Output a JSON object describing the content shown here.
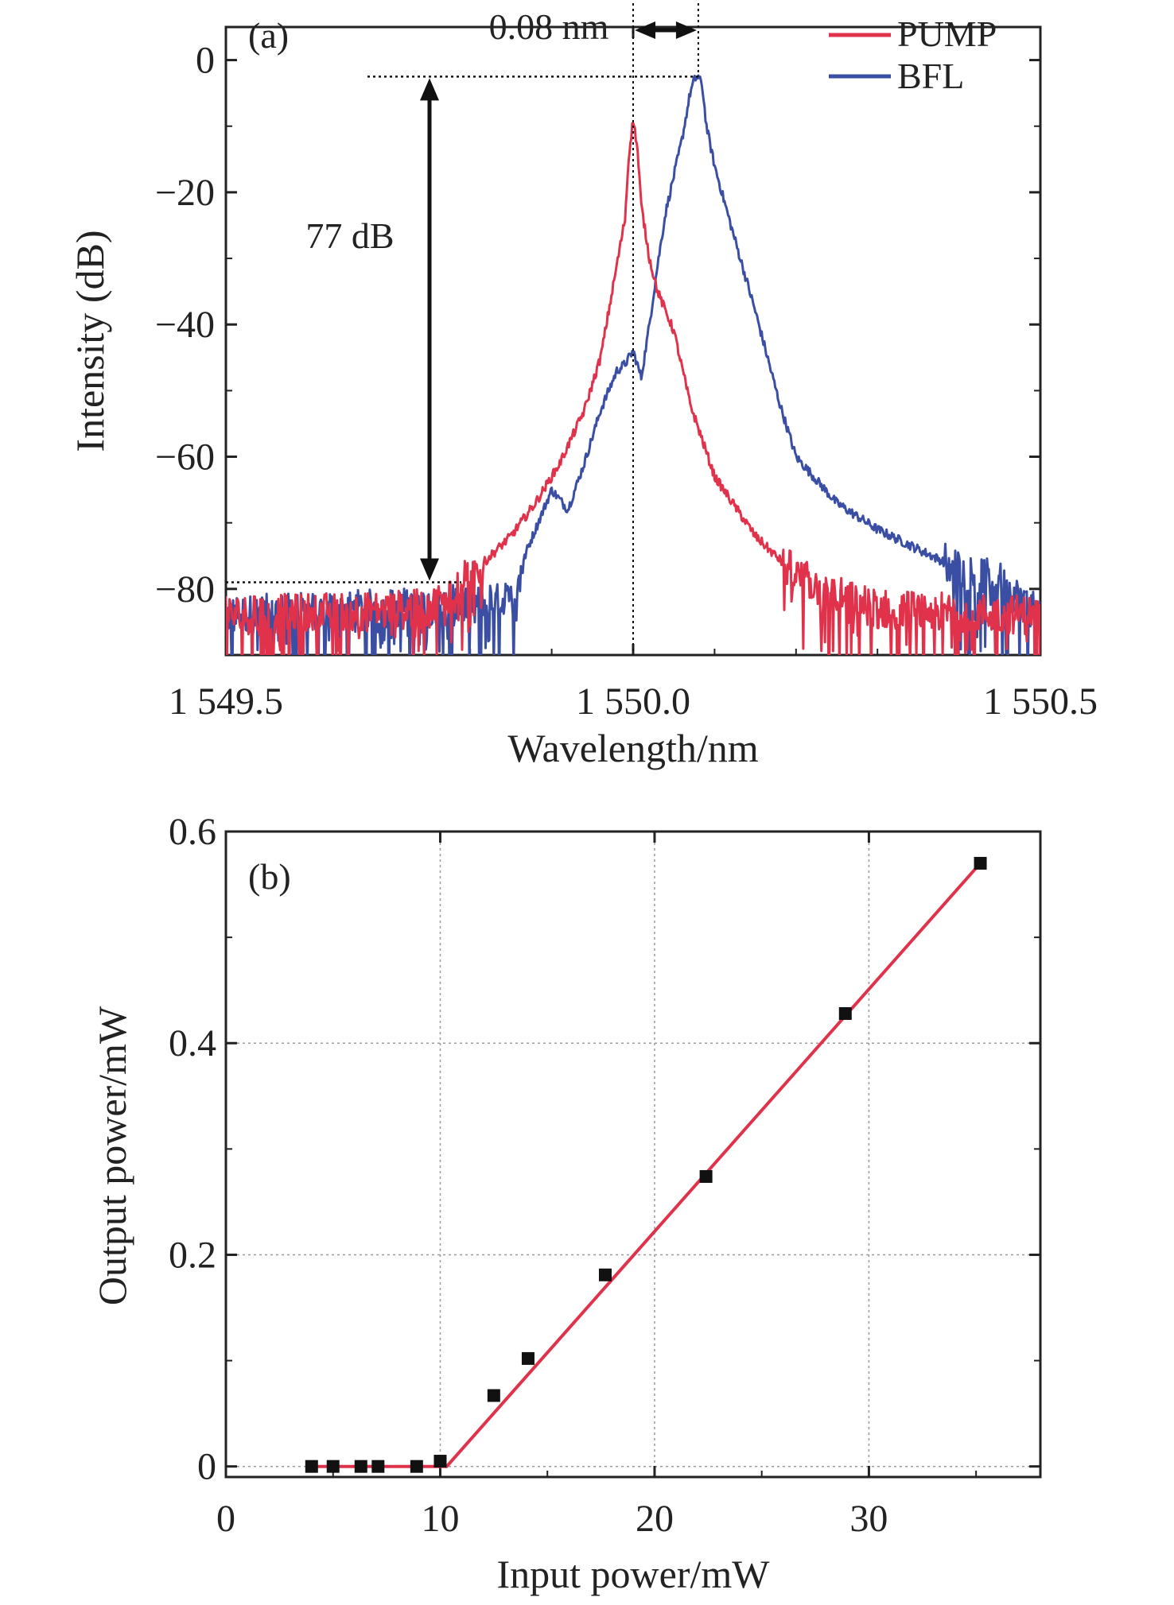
{
  "chart_data": [
    {
      "type": "line",
      "panel_label": "(a)",
      "title": "",
      "xlabel": "Wavelength/nm",
      "ylabel": "Intensity (dB)",
      "xlim": [
        1549.5,
        1550.5
      ],
      "ylim": [
        -90,
        5
      ],
      "xticks": [
        1549.5,
        1550.0,
        1550.5
      ],
      "xtick_labels": [
        "1 549.5",
        "1 550.0",
        "1 550.5"
      ],
      "yticks": [
        0,
        -20,
        -40,
        -60,
        -80
      ],
      "ytick_labels": [
        "0",
        "−20",
        "−40",
        "−60",
        "−80"
      ],
      "grid": false,
      "legend_position": "top-right",
      "series": [
        {
          "name": "PUMP",
          "color": "#e0324b",
          "x": [
            1549.5,
            1549.75,
            1549.8,
            1549.85,
            1549.88,
            1549.91,
            1549.94,
            1549.96,
            1549.97,
            1549.98,
            1549.99,
            1549.995,
            1550.0,
            1550.005,
            1550.01,
            1550.02,
            1550.03,
            1550.05,
            1550.07,
            1550.1,
            1550.15,
            1550.2,
            1550.25,
            1550.3,
            1550.5
          ],
          "y": [
            -84,
            -83,
            -78,
            -72,
            -67,
            -61,
            -53,
            -45,
            -38,
            -31,
            -24,
            -14,
            -9,
            -13,
            -22,
            -30,
            -35,
            -41,
            -52,
            -63,
            -72,
            -78,
            -81,
            -83,
            -84
          ]
        },
        {
          "name": "BFL",
          "color": "#3a4fa3",
          "x": [
            1549.5,
            1549.85,
            1549.87,
            1549.9,
            1549.92,
            1549.94,
            1549.96,
            1549.98,
            1549.99,
            1550.0,
            1550.01,
            1550.02,
            1550.03,
            1550.04,
            1550.06,
            1550.07,
            1550.075,
            1550.08,
            1550.085,
            1550.09,
            1550.1,
            1550.12,
            1550.15,
            1550.18,
            1550.2,
            1550.25,
            1550.3,
            1550.35,
            1550.4,
            1550.45,
            1550.5
          ],
          "y": [
            -84,
            -82,
            -74,
            -65,
            -68,
            -61,
            -53,
            -47,
            -46,
            -44,
            -48,
            -40,
            -31,
            -23,
            -12,
            -5,
            -3,
            -2.5,
            -4,
            -10,
            -16,
            -25,
            -38,
            -52,
            -60,
            -67,
            -71,
            -74,
            -77,
            -79,
            -84
          ]
        }
      ],
      "annotations": [
        {
          "text": "0.08 nm",
          "from_x": 1550.0,
          "to_x": 1550.08,
          "y": -3
        },
        {
          "text": "77 dB",
          "x": 1549.75,
          "from_y": -2.5,
          "to_y": -79
        }
      ]
    },
    {
      "type": "scatter",
      "panel_label": "(b)",
      "title": "",
      "xlabel": "Input power/mW",
      "ylabel": "Output power/mW",
      "xlim": [
        0,
        38
      ],
      "ylim": [
        -0.01,
        0.6
      ],
      "xticks": [
        0,
        10,
        20,
        30
      ],
      "xtick_labels": [
        "0",
        "10",
        "20",
        "30"
      ],
      "yticks": [
        0,
        0.2,
        0.4,
        0.6
      ],
      "ytick_labels": [
        "0",
        "0.2",
        "0.4",
        "0.6"
      ],
      "grid": true,
      "marker_color": "#111111",
      "fit_color": "#e0324b",
      "x": [
        4.0,
        5.0,
        6.3,
        7.1,
        8.9,
        10.0,
        12.5,
        14.1,
        17.7,
        22.4,
        28.9,
        35.2
      ],
      "y": [
        0.0,
        0.0,
        0.0,
        0.0,
        0.0,
        0.005,
        0.067,
        0.102,
        0.181,
        0.274,
        0.428,
        0.57
      ],
      "fit_x": [
        4.0,
        10.3,
        35.2
      ],
      "fit_y": [
        0.0,
        0.0,
        0.57
      ]
    }
  ]
}
